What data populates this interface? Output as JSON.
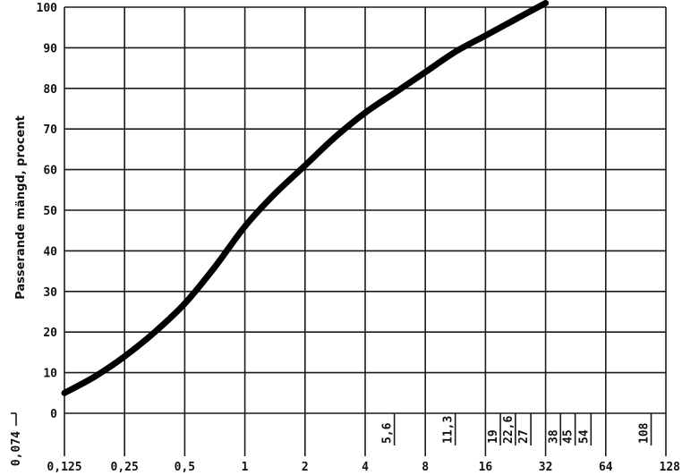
{
  "chart_data": {
    "type": "line",
    "xscale": "log2",
    "xlim": [
      0.125,
      128
    ],
    "ylim": [
      0,
      100
    ],
    "ylabel": "Passerande mängd, procent",
    "grid": true,
    "y_ticks": [
      0,
      10,
      20,
      30,
      40,
      50,
      60,
      70,
      80,
      90,
      100
    ],
    "y_tick_labels": [
      "0",
      "10",
      "20",
      "30",
      "40",
      "50",
      "60",
      "70",
      "80",
      "90",
      "100"
    ],
    "x_major_ticks": [
      {
        "value": 0.125,
        "label": "0,125"
      },
      {
        "value": 0.25,
        "label": "0,25"
      },
      {
        "value": 0.5,
        "label": "0,5"
      },
      {
        "value": 1,
        "label": "1"
      },
      {
        "value": 2,
        "label": "2"
      },
      {
        "value": 4,
        "label": "4"
      },
      {
        "value": 8,
        "label": "8"
      },
      {
        "value": 16,
        "label": "16"
      },
      {
        "value": 32,
        "label": "32"
      },
      {
        "value": 64,
        "label": "64"
      },
      {
        "value": 128,
        "label": "128"
      }
    ],
    "x_sieve_ticks": [
      {
        "value": 0.074,
        "label": "0,074"
      },
      {
        "value": 5.6,
        "label": "5,6"
      },
      {
        "value": 11.3,
        "label": "11,3"
      },
      {
        "value": 19,
        "label": "19"
      },
      {
        "value": 22.6,
        "label": "22,6"
      },
      {
        "value": 27,
        "label": "27"
      },
      {
        "value": 38,
        "label": "38"
      },
      {
        "value": 45,
        "label": "45"
      },
      {
        "value": 54,
        "label": "54"
      },
      {
        "value": 108,
        "label": "108"
      }
    ],
    "series": [
      {
        "x": [
          0.125,
          0.177,
          0.25,
          0.354,
          0.5,
          0.707,
          1,
          1.41,
          2,
          2.83,
          4,
          5.66,
          8,
          11.3,
          16,
          22.6,
          32
        ],
        "values": [
          5,
          9,
          14,
          20,
          27,
          36,
          46,
          54,
          61,
          68,
          74,
          79,
          84,
          89,
          93,
          97,
          101
        ]
      }
    ]
  }
}
